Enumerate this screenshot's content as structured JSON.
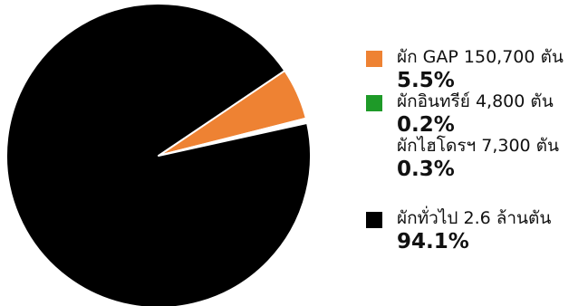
{
  "chart_data": {
    "type": "pie",
    "title": "",
    "start_angle_deg": -34,
    "slices": [
      {
        "label": "ผัก GAP 150,700 ตัน",
        "value": 5.5,
        "value_label": "5.5%",
        "color": "#ee8233",
        "show_swatch": true
      },
      {
        "label": "ผักอินทรีย์ 4,800 ตัน",
        "value": 0.2,
        "value_label": "0.2%",
        "color": "#1e9a28",
        "show_swatch": true
      },
      {
        "label": "ผักไฮโดรฯ 7,300 ตัน",
        "value": 0.3,
        "value_label": "0.3%",
        "color": "#ffffff",
        "show_swatch": false
      },
      {
        "label": "ผักทั่วไป 2.6 ล้านตัน",
        "value": 94.1,
        "value_label": "94.1%",
        "color": "#000000",
        "show_swatch": true
      }
    ],
    "legend_position": "right"
  }
}
